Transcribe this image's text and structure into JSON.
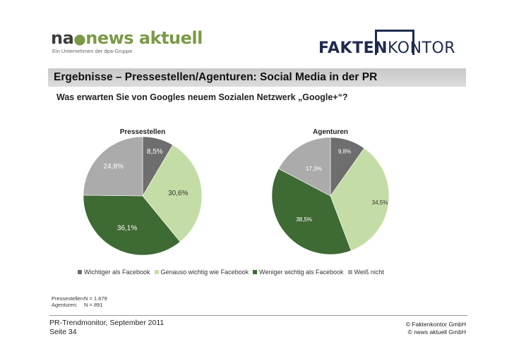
{
  "logos": {
    "left_na": "na",
    "left_rest": "news aktuell",
    "left_tagline": "Ein Unternehmen der dpa-Gruppe",
    "right_part1": "FAKTEN",
    "right_part2": "KONTOR"
  },
  "title": "Ergebnisse – Pressestellen/Agenturen: Social Media in der PR",
  "question": "Was erwarten Sie von Googles neuem Sozialen Netzwerk „Google+“?",
  "colors": {
    "title_bar": "#d4d4d4",
    "wichtiger": "#6e6e6e",
    "genauso": "#c4dda6",
    "weniger": "#3e6a34",
    "weiss_nicht": "#ababab"
  },
  "chart_data": [
    {
      "type": "pie",
      "title": "Pressestellen",
      "categories": [
        "Wichtiger als Facebook",
        "Genauso wichtig wie Facebook",
        "Weniger wichtig als Facebook",
        "Weiß nicht"
      ],
      "values": [
        8.5,
        30.6,
        36.1,
        24.8
      ],
      "labels": [
        "8,5%",
        "30,6%",
        "36,1%",
        "24,8%"
      ]
    },
    {
      "type": "pie",
      "title": "Agenturen",
      "categories": [
        "Wichtiger als Facebook",
        "Genauso wichtig wie Facebook",
        "Weniger wichtig als Facebook",
        "Weiß nicht"
      ],
      "values": [
        9.8,
        34.5,
        38.5,
        17.3
      ],
      "labels": [
        "9,8%",
        "34,5%",
        "38,5%",
        "17,3%"
      ]
    }
  ],
  "legend": [
    "Wichtiger als Facebook",
    "Genauso wichtig wie Facebook",
    "Weniger wichtig als Facebook",
    "Weiß nicht"
  ],
  "sample": [
    {
      "label": "Pressestellen:",
      "value": "N = 1.679"
    },
    {
      "label": "Agenturen:",
      "value": "N = 891"
    }
  ],
  "footer": {
    "line1": "PR-Trendmonitor, September 2011",
    "line2": "Seite 34",
    "copyright1": "© Faktenkontor GmbH",
    "copyright2": "© news aktuell GmbH"
  }
}
